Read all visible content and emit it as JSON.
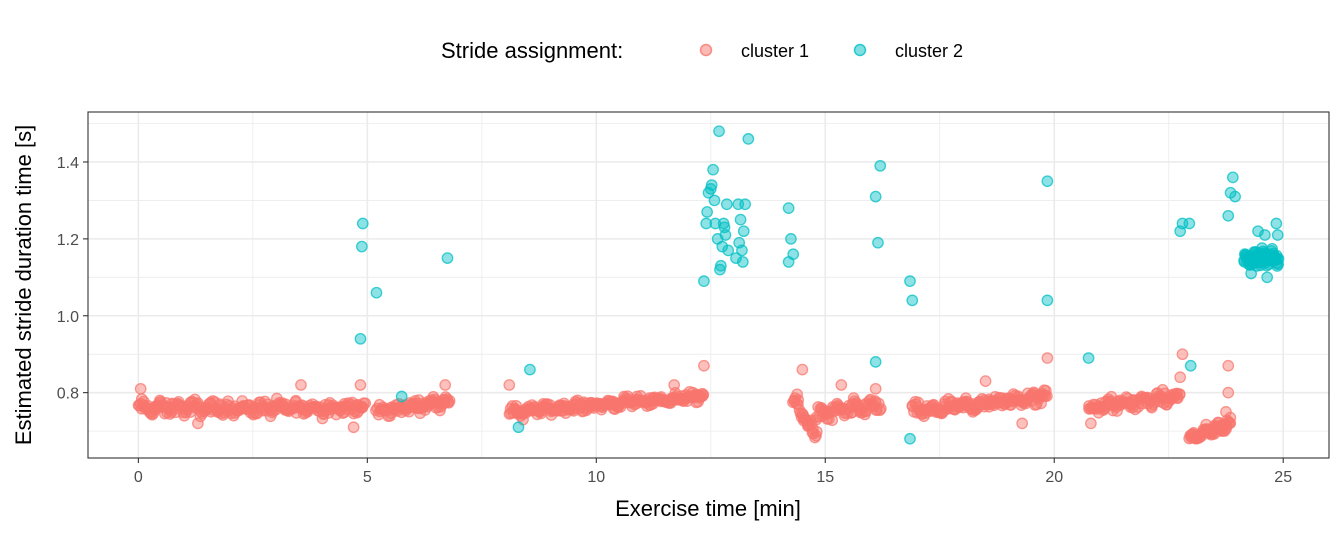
{
  "legend": {
    "title": "Stride assignment:",
    "items": [
      {
        "label": "cluster 1",
        "color": "#F8766D"
      },
      {
        "label": "cluster 2",
        "color": "#00BFC4"
      }
    ],
    "position": "top"
  },
  "chart_data": {
    "type": "scatter",
    "xlabel": "Exercise time [min]",
    "ylabel": "Estimated stride duration time [s]",
    "xlim": [
      -1.1,
      26.0
    ],
    "ylim": [
      0.63,
      1.53
    ],
    "xticks": [
      0,
      5,
      10,
      15,
      20,
      25
    ],
    "yticks": [
      0.8,
      1.0,
      1.2,
      1.4
    ],
    "xtick_labels": [
      "0",
      "5",
      "10",
      "15",
      "20",
      "25"
    ],
    "ytick_labels": [
      "0.8",
      "1.0",
      "1.2",
      "1.4"
    ],
    "grid": true,
    "series": [
      {
        "name": "cluster 1",
        "color": "#F8766D",
        "segments": [
          {
            "x": [
              0.0,
              4.95
            ],
            "y_start": 0.76,
            "y_end": 0.76,
            "n": 240,
            "noise": 0.018
          },
          {
            "x": [
              5.2,
              6.8
            ],
            "y_start": 0.75,
            "y_end": 0.78,
            "n": 80,
            "noise": 0.015
          },
          {
            "x": [
              8.1,
              12.35
            ],
            "y_start": 0.75,
            "y_end": 0.79,
            "n": 220,
            "noise": 0.013
          },
          {
            "x": [
              14.3,
              14.8
            ],
            "y_start": 0.78,
            "y_end": 0.69,
            "n": 30,
            "noise": 0.02
          },
          {
            "x": [
              14.8,
              16.2
            ],
            "y_start": 0.74,
            "y_end": 0.77,
            "n": 70,
            "noise": 0.02
          },
          {
            "x": [
              16.9,
              19.85
            ],
            "y_start": 0.75,
            "y_end": 0.79,
            "n": 150,
            "noise": 0.018
          },
          {
            "x": [
              20.75,
              22.75
            ],
            "y_start": 0.76,
            "y_end": 0.79,
            "n": 100,
            "noise": 0.018
          },
          {
            "x": [
              22.95,
              23.85
            ],
            "y_start": 0.68,
            "y_end": 0.72,
            "n": 60,
            "noise": 0.014
          }
        ],
        "points": [
          {
            "x": 0.05,
            "y": 0.81
          },
          {
            "x": 1.3,
            "y": 0.72
          },
          {
            "x": 3.55,
            "y": 0.82
          },
          {
            "x": 4.7,
            "y": 0.71
          },
          {
            "x": 4.85,
            "y": 0.82
          },
          {
            "x": 6.7,
            "y": 0.82
          },
          {
            "x": 8.1,
            "y": 0.82
          },
          {
            "x": 8.4,
            "y": 0.73
          },
          {
            "x": 11.7,
            "y": 0.82
          },
          {
            "x": 12.35,
            "y": 0.87
          },
          {
            "x": 14.5,
            "y": 0.86
          },
          {
            "x": 15.35,
            "y": 0.82
          },
          {
            "x": 16.1,
            "y": 0.81
          },
          {
            "x": 18.5,
            "y": 0.83
          },
          {
            "x": 19.85,
            "y": 0.89
          },
          {
            "x": 19.3,
            "y": 0.72
          },
          {
            "x": 20.8,
            "y": 0.72
          },
          {
            "x": 22.8,
            "y": 0.9
          },
          {
            "x": 22.75,
            "y": 0.84
          },
          {
            "x": 23.8,
            "y": 0.87
          },
          {
            "x": 23.8,
            "y": 0.8
          },
          {
            "x": 23.75,
            "y": 0.75
          }
        ]
      },
      {
        "name": "cluster 2",
        "color": "#00BFC4",
        "points": [
          {
            "x": 4.9,
            "y": 1.24
          },
          {
            "x": 4.88,
            "y": 1.18
          },
          {
            "x": 4.85,
            "y": 0.94
          },
          {
            "x": 5.2,
            "y": 1.06
          },
          {
            "x": 5.75,
            "y": 0.79
          },
          {
            "x": 6.75,
            "y": 1.15
          },
          {
            "x": 8.3,
            "y": 0.71
          },
          {
            "x": 8.55,
            "y": 0.86
          },
          {
            "x": 12.35,
            "y": 1.09
          },
          {
            "x": 12.4,
            "y": 1.24
          },
          {
            "x": 12.42,
            "y": 1.27
          },
          {
            "x": 12.45,
            "y": 1.32
          },
          {
            "x": 12.5,
            "y": 1.33
          },
          {
            "x": 12.52,
            "y": 1.34
          },
          {
            "x": 12.55,
            "y": 1.38
          },
          {
            "x": 12.58,
            "y": 1.3
          },
          {
            "x": 12.6,
            "y": 1.24
          },
          {
            "x": 12.65,
            "y": 1.2
          },
          {
            "x": 12.68,
            "y": 1.48
          },
          {
            "x": 12.7,
            "y": 1.12
          },
          {
            "x": 12.72,
            "y": 1.13
          },
          {
            "x": 12.75,
            "y": 1.18
          },
          {
            "x": 12.78,
            "y": 1.24
          },
          {
            "x": 12.8,
            "y": 1.23
          },
          {
            "x": 12.82,
            "y": 1.21
          },
          {
            "x": 12.85,
            "y": 1.29
          },
          {
            "x": 12.88,
            "y": 1.17
          },
          {
            "x": 13.05,
            "y": 1.15
          },
          {
            "x": 13.1,
            "y": 1.29
          },
          {
            "x": 13.12,
            "y": 1.19
          },
          {
            "x": 13.15,
            "y": 1.25
          },
          {
            "x": 13.18,
            "y": 1.17
          },
          {
            "x": 13.2,
            "y": 1.14
          },
          {
            "x": 13.22,
            "y": 1.22
          },
          {
            "x": 13.25,
            "y": 1.29
          },
          {
            "x": 13.32,
            "y": 1.46
          },
          {
            "x": 14.2,
            "y": 1.28
          },
          {
            "x": 14.25,
            "y": 1.2
          },
          {
            "x": 14.2,
            "y": 1.14
          },
          {
            "x": 14.3,
            "y": 1.16
          },
          {
            "x": 16.1,
            "y": 1.31
          },
          {
            "x": 16.15,
            "y": 1.19
          },
          {
            "x": 16.2,
            "y": 1.39
          },
          {
            "x": 16.1,
            "y": 0.88
          },
          {
            "x": 16.85,
            "y": 1.09
          },
          {
            "x": 16.9,
            "y": 1.04
          },
          {
            "x": 16.85,
            "y": 0.68
          },
          {
            "x": 19.85,
            "y": 1.35
          },
          {
            "x": 19.85,
            "y": 1.04
          },
          {
            "x": 20.75,
            "y": 0.89
          },
          {
            "x": 22.75,
            "y": 1.22
          },
          {
            "x": 22.8,
            "y": 1.24
          },
          {
            "x": 22.95,
            "y": 1.24
          },
          {
            "x": 22.98,
            "y": 0.87
          },
          {
            "x": 23.8,
            "y": 1.26
          },
          {
            "x": 23.85,
            "y": 1.32
          },
          {
            "x": 23.9,
            "y": 1.36
          },
          {
            "x": 23.95,
            "y": 1.31
          },
          {
            "x": 24.45,
            "y": 1.22
          },
          {
            "x": 24.6,
            "y": 1.21
          },
          {
            "x": 24.85,
            "y": 1.24
          },
          {
            "x": 24.88,
            "y": 1.21
          },
          {
            "x": 24.3,
            "y": 1.11
          },
          {
            "x": 24.65,
            "y": 1.1
          }
        ],
        "segments": [
          {
            "x": [
              24.15,
              24.9
            ],
            "y_start": 1.15,
            "y_end": 1.15,
            "n": 75,
            "noise": 0.02
          }
        ]
      }
    ]
  }
}
